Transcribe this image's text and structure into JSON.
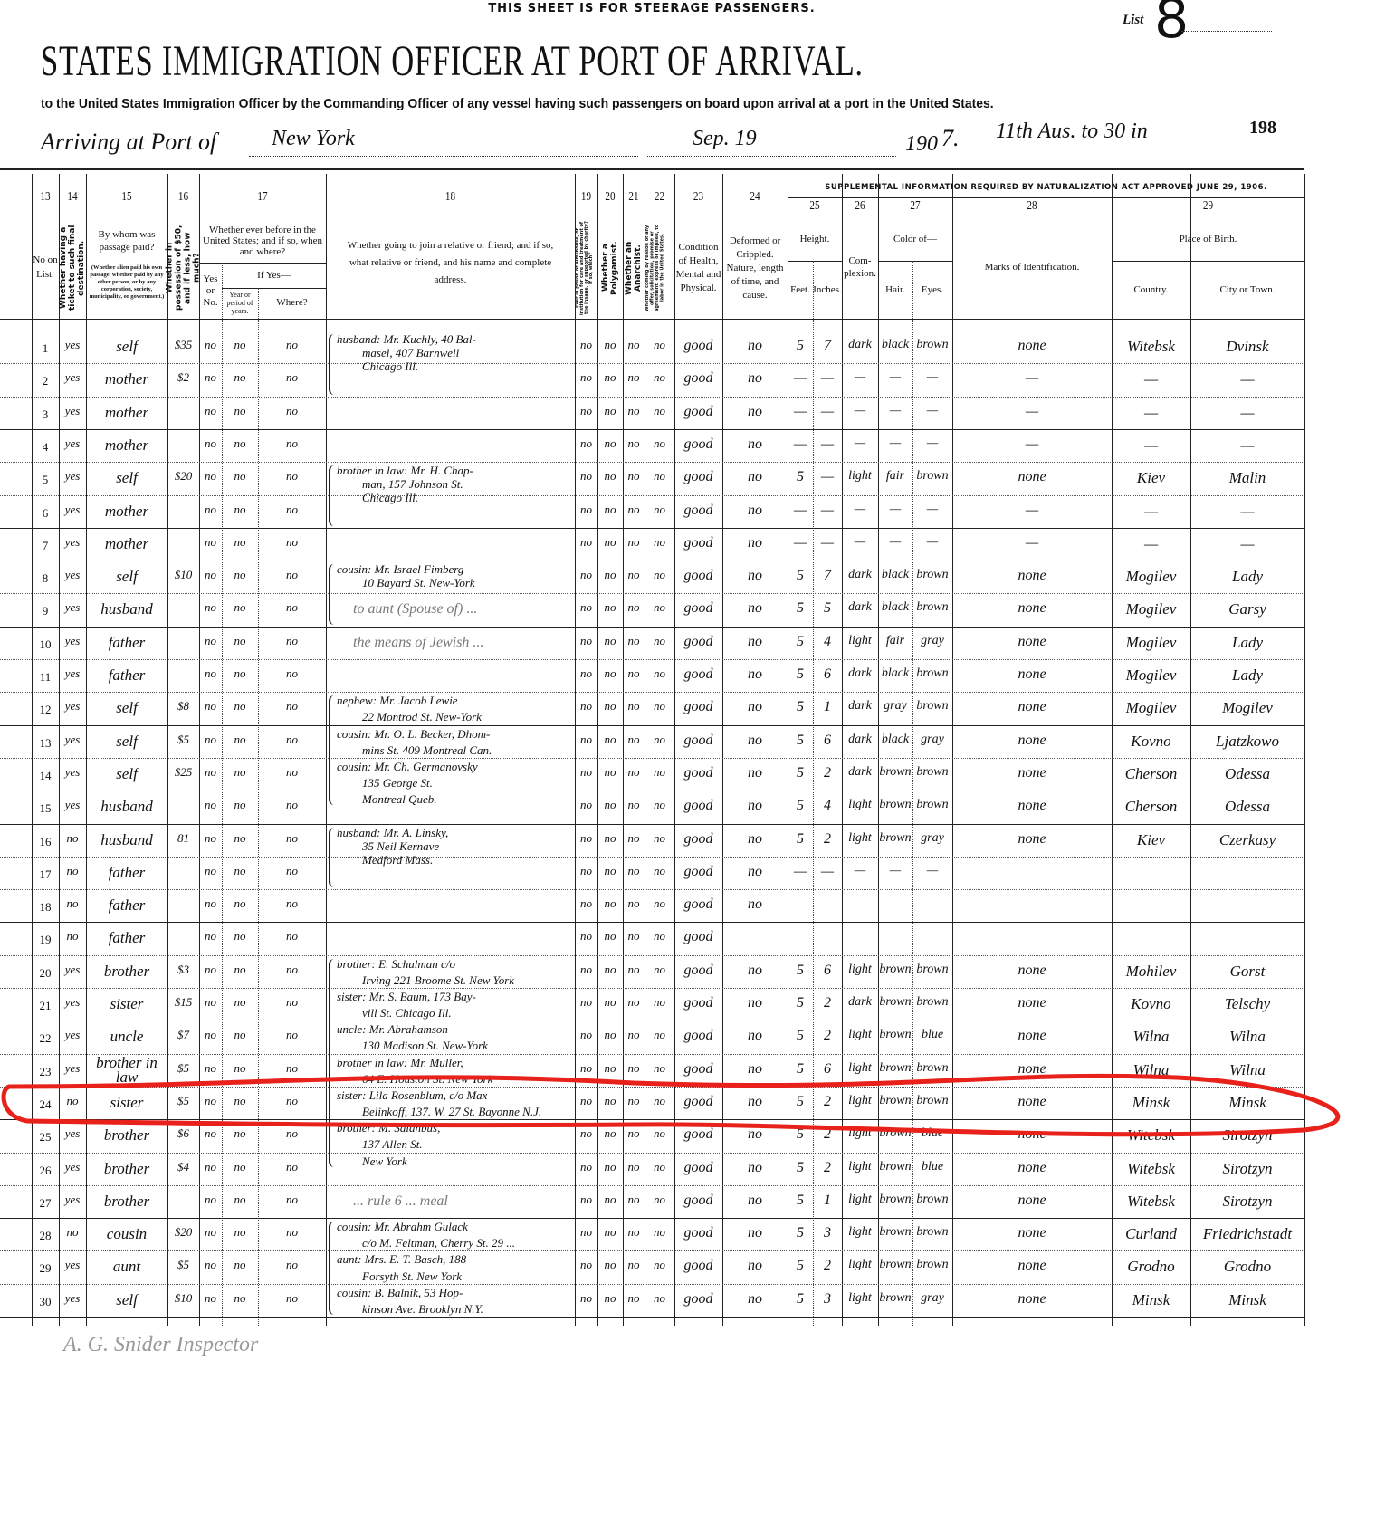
{
  "header": {
    "steerage_note": "THIS SHEET IS FOR STEERAGE PASSENGERS.",
    "list_label": "List",
    "list_number": "8",
    "title": "STATES IMMIGRATION OFFICER AT PORT OF ARRIVAL.",
    "subtitle": "to the United States Immigration Officer by the Commanding Officer of any vessel having such passengers on board upon arrival at a port in the United States.",
    "arriving_label": "Arriving at Port of",
    "port": "New York",
    "date": "Sep. 19",
    "year_printed": "190",
    "year_handwritten": "7.",
    "annotation": "11th Aus. to 30 in",
    "page_number": "198"
  },
  "columns": {
    "numbers": [
      "13",
      "14",
      "15",
      "16",
      "17",
      "18",
      "19",
      "20",
      "21",
      "22",
      "23",
      "24",
      "25",
      "26",
      "27",
      "28",
      "29"
    ],
    "c13": "No on List.",
    "c14": "Whether having a ticket to such final destination.",
    "c15": "By whom was passage paid?",
    "c15_note": "(Whether alien paid his own passage, whether paid by any other person, or by any corporation, society, municipality, or government.)",
    "c16": "Whether in possession of $50, and if less, how much?",
    "c17": "Whether ever before in the United States; and if so, when and where?",
    "c17_yesno": "Yes or No.",
    "c17_ifyes": "If Yes—",
    "c17_year": "Year or period of years.",
    "c17_where": "Where?",
    "c18": "Whether going to join a relative or friend; and if so, what relative or friend, and his name and complete address.",
    "c19": "Ever in prison or almshouse, or institution for care and treatment of the insane, or supported by charity? If so, which?",
    "c20": "Whether a Polygamist.",
    "c21": "Whether an Anarchist.",
    "c22": "Whether coming by reason of any offer, solicitation, promise or agreement, express or implied, to labor in the United States.",
    "c23": "Condition of Health, Mental and Physical.",
    "c24": "Deformed or Crippled. Nature, length of time, and cause.",
    "supplemental": "SUPPLEMENTAL INFORMATION REQUIRED BY NATURALIZATION ACT APPROVED JUNE 29, 1906.",
    "c25": "Height.",
    "c25_feet": "Feet.",
    "c25_inches": "Inches.",
    "c26": "Com-plexion.",
    "c27": "Color of—",
    "c27_hair": "Hair.",
    "c27_eyes": "Eyes.",
    "c28": "Marks of Identification.",
    "c29": "Place of Birth.",
    "c29_country": "Country.",
    "c29_city": "City or Town."
  },
  "rows": [
    {
      "no": "1",
      "ticket": "yes",
      "paid_by": "self",
      "money": "$35",
      "before": "no",
      "year": "no",
      "where": "no",
      "prison": "no",
      "polygamist": "no",
      "anarchist": "no",
      "contract": "no",
      "health": "good",
      "deformed": "no",
      "feet": "5",
      "inches": "7",
      "complexion": "dark",
      "hair": "black",
      "eyes": "brown",
      "marks": "none",
      "country": "Witebsk",
      "city": "Dvinsk"
    },
    {
      "no": "2",
      "ticket": "yes",
      "paid_by": "mother",
      "money": "$2",
      "before": "no",
      "year": "no",
      "where": "no",
      "prison": "no",
      "polygamist": "no",
      "anarchist": "no",
      "contract": "no",
      "health": "good",
      "deformed": "no",
      "feet": "—",
      "inches": "—",
      "complexion": "—",
      "hair": "—",
      "eyes": "—",
      "marks": "—",
      "country": "—",
      "city": "—"
    },
    {
      "no": "3",
      "ticket": "yes",
      "paid_by": "mother",
      "money": "",
      "before": "no",
      "year": "no",
      "where": "no",
      "prison": "no",
      "polygamist": "no",
      "anarchist": "no",
      "contract": "no",
      "health": "good",
      "deformed": "no",
      "feet": "—",
      "inches": "—",
      "complexion": "—",
      "hair": "—",
      "eyes": "—",
      "marks": "—",
      "country": "—",
      "city": "—"
    },
    {
      "no": "4",
      "ticket": "yes",
      "paid_by": "mother",
      "money": "",
      "before": "no",
      "year": "no",
      "where": "no",
      "prison": "no",
      "polygamist": "no",
      "anarchist": "no",
      "contract": "no",
      "health": "good",
      "deformed": "no",
      "feet": "—",
      "inches": "—",
      "complexion": "—",
      "hair": "—",
      "eyes": "—",
      "marks": "—",
      "country": "—",
      "city": "—"
    },
    {
      "no": "5",
      "ticket": "yes",
      "paid_by": "self",
      "money": "$20",
      "before": "no",
      "year": "no",
      "where": "no",
      "prison": "no",
      "polygamist": "no",
      "anarchist": "no",
      "contract": "no",
      "health": "good",
      "deformed": "no",
      "feet": "5",
      "inches": "—",
      "complexion": "light",
      "hair": "fair",
      "eyes": "brown",
      "marks": "none",
      "country": "Kiev",
      "city": "Malin"
    },
    {
      "no": "6",
      "ticket": "yes",
      "paid_by": "mother",
      "money": "",
      "before": "no",
      "year": "no",
      "where": "no",
      "prison": "no",
      "polygamist": "no",
      "anarchist": "no",
      "contract": "no",
      "health": "good",
      "deformed": "no",
      "feet": "—",
      "inches": "—",
      "complexion": "—",
      "hair": "—",
      "eyes": "—",
      "marks": "—",
      "country": "—",
      "city": "—"
    },
    {
      "no": "7",
      "ticket": "yes",
      "paid_by": "mother",
      "money": "",
      "before": "no",
      "year": "no",
      "where": "no",
      "prison": "no",
      "polygamist": "no",
      "anarchist": "no",
      "contract": "no",
      "health": "good",
      "deformed": "no",
      "feet": "—",
      "inches": "—",
      "complexion": "—",
      "hair": "—",
      "eyes": "—",
      "marks": "—",
      "country": "—",
      "city": "—"
    },
    {
      "no": "8",
      "ticket": "yes",
      "paid_by": "self",
      "money": "$10",
      "before": "no",
      "year": "no",
      "where": "no",
      "prison": "no",
      "polygamist": "no",
      "anarchist": "no",
      "contract": "no",
      "health": "good",
      "deformed": "no",
      "feet": "5",
      "inches": "7",
      "complexion": "dark",
      "hair": "black",
      "eyes": "brown",
      "marks": "none",
      "country": "Mogilev",
      "city": "Lady"
    },
    {
      "no": "9",
      "ticket": "yes",
      "paid_by": "husband",
      "money": "",
      "before": "no",
      "year": "no",
      "where": "no",
      "prison": "no",
      "polygamist": "no",
      "anarchist": "no",
      "contract": "no",
      "health": "good",
      "deformed": "no",
      "feet": "5",
      "inches": "5",
      "complexion": "dark",
      "hair": "black",
      "eyes": "brown",
      "marks": "none",
      "country": "Mogilev",
      "city": "Garsy"
    },
    {
      "no": "10",
      "ticket": "yes",
      "paid_by": "father",
      "money": "",
      "before": "no",
      "year": "no",
      "where": "no",
      "prison": "no",
      "polygamist": "no",
      "anarchist": "no",
      "contract": "no",
      "health": "good",
      "deformed": "no",
      "feet": "5",
      "inches": "4",
      "complexion": "light",
      "hair": "fair",
      "eyes": "gray",
      "marks": "none",
      "country": "Mogilev",
      "city": "Lady"
    },
    {
      "no": "11",
      "ticket": "yes",
      "paid_by": "father",
      "money": "",
      "before": "no",
      "year": "no",
      "where": "no",
      "prison": "no",
      "polygamist": "no",
      "anarchist": "no",
      "contract": "no",
      "health": "good",
      "deformed": "no",
      "feet": "5",
      "inches": "6",
      "complexion": "dark",
      "hair": "black",
      "eyes": "brown",
      "marks": "none",
      "country": "Mogilev",
      "city": "Lady"
    },
    {
      "no": "12",
      "ticket": "yes",
      "paid_by": "self",
      "money": "$8",
      "before": "no",
      "year": "no",
      "where": "no",
      "prison": "no",
      "polygamist": "no",
      "anarchist": "no",
      "contract": "no",
      "health": "good",
      "deformed": "no",
      "feet": "5",
      "inches": "1",
      "complexion": "dark",
      "hair": "gray",
      "eyes": "brown",
      "marks": "none",
      "country": "Mogilev",
      "city": "Mogilev"
    },
    {
      "no": "13",
      "ticket": "yes",
      "paid_by": "self",
      "money": "$5",
      "before": "no",
      "year": "no",
      "where": "no",
      "prison": "no",
      "polygamist": "no",
      "anarchist": "no",
      "contract": "no",
      "health": "good",
      "deformed": "no",
      "feet": "5",
      "inches": "6",
      "complexion": "dark",
      "hair": "black",
      "eyes": "gray",
      "marks": "none",
      "country": "Kovno",
      "city": "Ljatzkowo"
    },
    {
      "no": "14",
      "ticket": "yes",
      "paid_by": "self",
      "money": "$25",
      "before": "no",
      "year": "no",
      "where": "no",
      "prison": "no",
      "polygamist": "no",
      "anarchist": "no",
      "contract": "no",
      "health": "good",
      "deformed": "no",
      "feet": "5",
      "inches": "2",
      "complexion": "dark",
      "hair": "brown",
      "eyes": "brown",
      "marks": "none",
      "country": "Cherson",
      "city": "Odessa"
    },
    {
      "no": "15",
      "ticket": "yes",
      "paid_by": "husband",
      "money": "",
      "before": "no",
      "year": "no",
      "where": "no",
      "prison": "no",
      "polygamist": "no",
      "anarchist": "no",
      "contract": "no",
      "health": "good",
      "deformed": "no",
      "feet": "5",
      "inches": "4",
      "complexion": "light",
      "hair": "brown",
      "eyes": "brown",
      "marks": "none",
      "country": "Cherson",
      "city": "Odessa"
    },
    {
      "no": "16",
      "ticket": "no",
      "paid_by": "husband",
      "money": "81",
      "before": "no",
      "year": "no",
      "where": "no",
      "prison": "no",
      "polygamist": "no",
      "anarchist": "no",
      "contract": "no",
      "health": "good",
      "deformed": "no",
      "feet": "5",
      "inches": "2",
      "complexion": "light",
      "hair": "brown",
      "eyes": "gray",
      "marks": "none",
      "country": "Kiev",
      "city": "Czerkasy"
    },
    {
      "no": "17",
      "ticket": "no",
      "paid_by": "father",
      "money": "",
      "before": "no",
      "year": "no",
      "where": "no",
      "prison": "no",
      "polygamist": "no",
      "anarchist": "no",
      "contract": "no",
      "health": "good",
      "deformed": "no",
      "feet": "—",
      "inches": "—",
      "complexion": "—",
      "hair": "—",
      "eyes": "—",
      "marks": "",
      "country": "",
      "city": ""
    },
    {
      "no": "18",
      "ticket": "no",
      "paid_by": "father",
      "money": "",
      "before": "no",
      "year": "no",
      "where": "no",
      "prison": "no",
      "polygamist": "no",
      "anarchist": "no",
      "contract": "no",
      "health": "good",
      "deformed": "no",
      "feet": "",
      "inches": "",
      "complexion": "",
      "hair": "",
      "eyes": "",
      "marks": "",
      "country": "",
      "city": ""
    },
    {
      "no": "19",
      "ticket": "no",
      "paid_by": "father",
      "money": "",
      "before": "no",
      "year": "no",
      "where": "no",
      "prison": "no",
      "polygamist": "no",
      "anarchist": "no",
      "contract": "no",
      "health": "good",
      "deformed": "",
      "feet": "",
      "inches": "",
      "complexion": "",
      "hair": "",
      "eyes": "",
      "marks": "",
      "country": "",
      "city": ""
    },
    {
      "no": "20",
      "ticket": "yes",
      "paid_by": "brother",
      "money": "$3",
      "before": "no",
      "year": "no",
      "where": "no",
      "prison": "no",
      "polygamist": "no",
      "anarchist": "no",
      "contract": "no",
      "health": "good",
      "deformed": "no",
      "feet": "5",
      "inches": "6",
      "complexion": "light",
      "hair": "brown",
      "eyes": "brown",
      "marks": "none",
      "country": "Mohilev",
      "city": "Gorst"
    },
    {
      "no": "21",
      "ticket": "yes",
      "paid_by": "sister",
      "money": "$15",
      "before": "no",
      "year": "no",
      "where": "no",
      "prison": "no",
      "polygamist": "no",
      "anarchist": "no",
      "contract": "no",
      "health": "good",
      "deformed": "no",
      "feet": "5",
      "inches": "2",
      "complexion": "dark",
      "hair": "brown",
      "eyes": "brown",
      "marks": "none",
      "country": "Kovno",
      "city": "Telschy"
    },
    {
      "no": "22",
      "ticket": "yes",
      "paid_by": "uncle",
      "money": "$7",
      "before": "no",
      "year": "no",
      "where": "no",
      "prison": "no",
      "polygamist": "no",
      "anarchist": "no",
      "contract": "no",
      "health": "good",
      "deformed": "no",
      "feet": "5",
      "inches": "2",
      "complexion": "light",
      "hair": "brown",
      "eyes": "blue",
      "marks": "none",
      "country": "Wilna",
      "city": "Wilna"
    },
    {
      "no": "23",
      "ticket": "yes",
      "paid_by": "brother in law",
      "money": "$5",
      "before": "no",
      "year": "no",
      "where": "no",
      "prison": "no",
      "polygamist": "no",
      "anarchist": "no",
      "contract": "no",
      "health": "good",
      "deformed": "no",
      "feet": "5",
      "inches": "6",
      "complexion": "light",
      "hair": "brown",
      "eyes": "brown",
      "marks": "none",
      "country": "Wilna",
      "city": "Wilna"
    },
    {
      "no": "24",
      "ticket": "no",
      "paid_by": "sister",
      "money": "$5",
      "before": "no",
      "year": "no",
      "where": "no",
      "prison": "no",
      "polygamist": "no",
      "anarchist": "no",
      "contract": "no",
      "health": "good",
      "deformed": "no",
      "feet": "5",
      "inches": "2",
      "complexion": "light",
      "hair": "brown",
      "eyes": "brown",
      "marks": "none",
      "country": "Minsk",
      "city": "Minsk"
    },
    {
      "no": "25",
      "ticket": "yes",
      "paid_by": "brother",
      "money": "$6",
      "before": "no",
      "year": "no",
      "where": "no",
      "prison": "no",
      "polygamist": "no",
      "anarchist": "no",
      "contract": "no",
      "health": "good",
      "deformed": "no",
      "feet": "5",
      "inches": "2",
      "complexion": "light",
      "hair": "brown",
      "eyes": "blue",
      "marks": "none",
      "country": "Witebsk",
      "city": "Sirotzyn"
    },
    {
      "no": "26",
      "ticket": "yes",
      "paid_by": "brother",
      "money": "$4",
      "before": "no",
      "year": "no",
      "where": "no",
      "prison": "no",
      "polygamist": "no",
      "anarchist": "no",
      "contract": "no",
      "health": "good",
      "deformed": "no",
      "feet": "5",
      "inches": "2",
      "complexion": "light",
      "hair": "brown",
      "eyes": "blue",
      "marks": "none",
      "country": "Witebsk",
      "city": "Sirotzyn"
    },
    {
      "no": "27",
      "ticket": "yes",
      "paid_by": "brother",
      "money": "",
      "before": "no",
      "year": "no",
      "where": "no",
      "prison": "no",
      "polygamist": "no",
      "anarchist": "no",
      "contract": "no",
      "health": "good",
      "deformed": "no",
      "feet": "5",
      "inches": "1",
      "complexion": "light",
      "hair": "brown",
      "eyes": "brown",
      "marks": "none",
      "country": "Witebsk",
      "city": "Sirotzyn"
    },
    {
      "no": "28",
      "ticket": "no",
      "paid_by": "cousin",
      "money": "$20",
      "before": "no",
      "year": "no",
      "where": "no",
      "prison": "no",
      "polygamist": "no",
      "anarchist": "no",
      "contract": "no",
      "health": "good",
      "deformed": "no",
      "feet": "5",
      "inches": "3",
      "complexion": "light",
      "hair": "brown",
      "eyes": "brown",
      "marks": "none",
      "country": "Curland",
      "city": "Friedrichstadt"
    },
    {
      "no": "29",
      "ticket": "yes",
      "paid_by": "aunt",
      "money": "$5",
      "before": "no",
      "year": "no",
      "where": "no",
      "prison": "no",
      "polygamist": "no",
      "anarchist": "no",
      "contract": "no",
      "health": "good",
      "deformed": "no",
      "feet": "5",
      "inches": "2",
      "complexion": "light",
      "hair": "brown",
      "eyes": "brown",
      "marks": "none",
      "country": "Grodno",
      "city": "Grodno"
    },
    {
      "no": "30",
      "ticket": "yes",
      "paid_by": "self",
      "money": "$10",
      "before": "no",
      "year": "no",
      "where": "no",
      "prison": "no",
      "polygamist": "no",
      "anarchist": "no",
      "contract": "no",
      "health": "good",
      "deformed": "no",
      "feet": "5",
      "inches": "3",
      "complexion": "light",
      "hair": "brown",
      "eyes": "gray",
      "marks": "none",
      "country": "Minsk",
      "city": "Minsk"
    }
  ],
  "relatives": [
    {
      "start_row": 1,
      "lines": [
        "husband: Mr. Kuchly, 40 Bal-",
        "masel, 407 Barnwell",
        "Chicago Ill."
      ]
    },
    {
      "start_row": 5,
      "lines": [
        "brother in law: Mr. H. Chap-",
        "man, 157 Johnson St.",
        "Chicago Ill."
      ]
    },
    {
      "start_row": 8,
      "lines": [
        "cousin: Mr. Israel Fimberg",
        "10 Bayard St. New-York"
      ]
    },
    {
      "start_row": 12,
      "lines": [
        "nephew: Mr. Jacob Lewie",
        "22 Montrod St. New-York",
        "cousin: Mr. O. L. Becker, Dhom-",
        "mins St. 409 Montreal Can.",
        "cousin: Mr. Ch. Germanovsky",
        "135 George St.",
        "Montreal Queb."
      ]
    },
    {
      "start_row": 16,
      "lines": [
        "husband: Mr. A. Linsky,",
        "35 Neil Kernave",
        "Medford Mass."
      ]
    },
    {
      "start_row": 20,
      "lines": [
        "brother: E. Schulman c/o",
        "Irving 221 Broome St. New York",
        "sister: Mr. S. Baum, 173 Bay-",
        "vill St. Chicago Ill.",
        "uncle: Mr. Abrahamson",
        "130 Madison St. New-York",
        "brother in law: Mr. Muller,",
        "64 E. Houston St. New York",
        "sister: Lila Rosenblum, c/o Max",
        "Belinkoff, 137. W. 27 St. Bayonne N.J.",
        "brother: M. Salanbus,",
        "137 Allen St.",
        "New York"
      ]
    },
    {
      "start_row": 28,
      "lines": [
        "cousin: Mr. Abrahm Gulack",
        "c/o M. Feltman, Cherry St. 29 ...",
        "aunt: Mrs. E. T. Basch, 188",
        "Forsyth St. New York",
        "cousin: B. Balnik, 53 Hop-",
        "kinson Ave. Brooklyn N.Y."
      ]
    }
  ],
  "marginal_notes": [
    {
      "row": 8,
      "text": "to aunt (Spouse of) ..."
    },
    {
      "row": 9,
      "text": "the means of Jewish ..."
    },
    {
      "row": 25,
      "text": "... rule 6 ... meal"
    }
  ],
  "signature": "A. G. Snider Inspector",
  "highlight": {
    "row": 24,
    "color": "#e8211b"
  }
}
